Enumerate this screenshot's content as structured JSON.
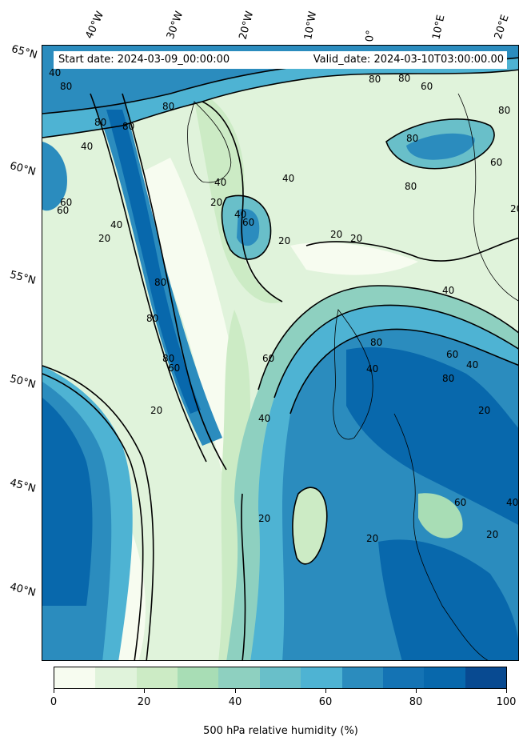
{
  "header": {
    "start_date": "Start date: 2024-03-09_00:00:00",
    "valid_date": "Valid_date: 2024-03-10T03:00:00.00"
  },
  "axes": {
    "longitude_labels": [
      "40°W",
      "30°W",
      "20°W",
      "10°W",
      "0°",
      "10°E",
      "20°E"
    ],
    "latitude_labels": [
      "65°N",
      "60°N",
      "55°N",
      "50°N",
      "45°N",
      "40°N"
    ]
  },
  "contour_labels": [
    "40",
    "80",
    "80",
    "80",
    "80",
    "60",
    "40",
    "40",
    "20",
    "60",
    "40",
    "20",
    "40",
    "20",
    "20",
    "40",
    "60",
    "80",
    "80",
    "20",
    "80",
    "60",
    "60",
    "40",
    "20",
    "80",
    "40",
    "20",
    "60",
    "80",
    "40",
    "20",
    "60",
    "20",
    "40",
    "60",
    "80",
    "80",
    "80",
    "60",
    "80",
    "80",
    "40",
    "20",
    "20"
  ],
  "colorbar": {
    "colors": [
      "#f7fcf0",
      "#e0f3db",
      "#ccebc5",
      "#a8ddb5",
      "#8ed0c0",
      "#69bfc9",
      "#4eb3d3",
      "#2b8cbe",
      "#1473b4",
      "#0868ac",
      "#084a91"
    ],
    "tick_labels": [
      "0",
      "20",
      "40",
      "60",
      "80",
      "100"
    ],
    "label": "500 hPa relative humidity (%)"
  }
}
